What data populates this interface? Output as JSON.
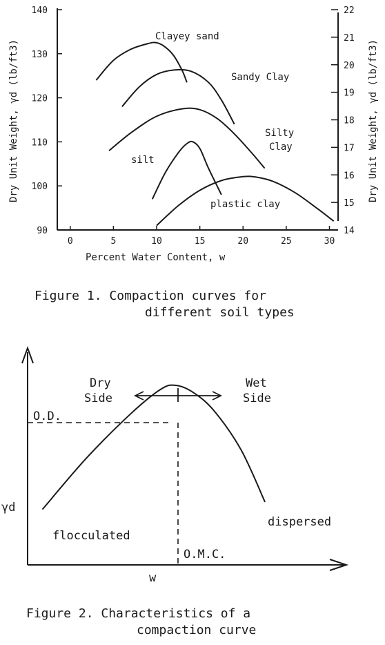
{
  "figure1": {
    "caption_line1": "Figure 1.  Compaction curves for",
    "caption_line2": "different soil types",
    "chart_data": {
      "type": "line",
      "xlabel": "Percent Water Content, w",
      "ylabel_left": "Dry Unit Weight, γd (lb/ft3)",
      "ylabel_right": "Dry Unit Weight, γd (lb/ft3)",
      "xlim": [
        -1.5,
        31
      ],
      "ylim_left": [
        90,
        140
      ],
      "ylim_right": [
        14,
        22
      ],
      "x_ticks": [
        "0",
        "5",
        "10",
        "15",
        "20",
        "25",
        "30"
      ],
      "y_ticks_left": [
        "90",
        "100",
        "110",
        "120",
        "130",
        "140"
      ],
      "y_ticks_right": [
        "14",
        "15",
        "16",
        "17",
        "18",
        "19",
        "20",
        "21",
        "22"
      ],
      "series": [
        {
          "name": "Clayey sand",
          "x": [
            3,
            5,
            7,
            9,
            10,
            11,
            12,
            13,
            13.5
          ],
          "y": [
            124,
            128.5,
            131,
            132.3,
            132.5,
            131.5,
            129.5,
            126,
            123.5
          ]
        },
        {
          "name": "Sandy Clay",
          "x": [
            6,
            8,
            10,
            12,
            14,
            16,
            17.5,
            19
          ],
          "y": [
            118,
            122.5,
            125.3,
            126.3,
            126,
            123.5,
            119.5,
            114
          ]
        },
        {
          "name": "Silty Clay",
          "x": [
            4.5,
            7,
            10,
            13,
            15,
            17,
            19,
            21,
            22.5
          ],
          "y": [
            108,
            112,
            115.8,
            117.5,
            117.3,
            115.3,
            111.8,
            107.5,
            104
          ]
        },
        {
          "name": "silt",
          "x": [
            9.5,
            11,
            12.5,
            13.5,
            14.2,
            15,
            16,
            17.5
          ],
          "y": [
            97,
            103,
            107.5,
            109.6,
            110,
            108.5,
            104,
            98
          ]
        },
        {
          "name": "plastic clay",
          "x": [
            10,
            12.5,
            15,
            17.5,
            20,
            21.5,
            23.5,
            26,
            28.5,
            30.5
          ],
          "y": [
            91,
            95.5,
            99,
            101.2,
            102.1,
            102,
            101,
            98.5,
            95,
            92
          ]
        }
      ],
      "annotations": [
        "Clayey sand",
        "Sandy Clay",
        "Silty",
        "Clay",
        "silt",
        "plastic clay"
      ]
    }
  },
  "figure2": {
    "caption_line1": "Figure 2.  Characteristics of a",
    "caption_line2": "compaction curve",
    "chart_data": {
      "type": "line",
      "xlabel": "w",
      "ylabel": "γd",
      "series": [
        {
          "x": [
            0.05,
            0.2,
            0.35,
            0.45,
            0.5,
            0.56,
            0.63,
            0.72,
            0.8
          ],
          "y": [
            0.3,
            0.58,
            0.82,
            0.95,
            0.97,
            0.93,
            0.83,
            0.62,
            0.34
          ]
        }
      ],
      "annotations": {
        "dry_side_line1": "Dry",
        "dry_side_line2": "Side",
        "wet_side_line1": "Wet",
        "wet_side_line2": "Side",
        "optimum_density": "O.D.",
        "optimum_moisture": "O.M.C.",
        "left_branch": "flocculated",
        "right_branch": "dispersed"
      }
    }
  }
}
